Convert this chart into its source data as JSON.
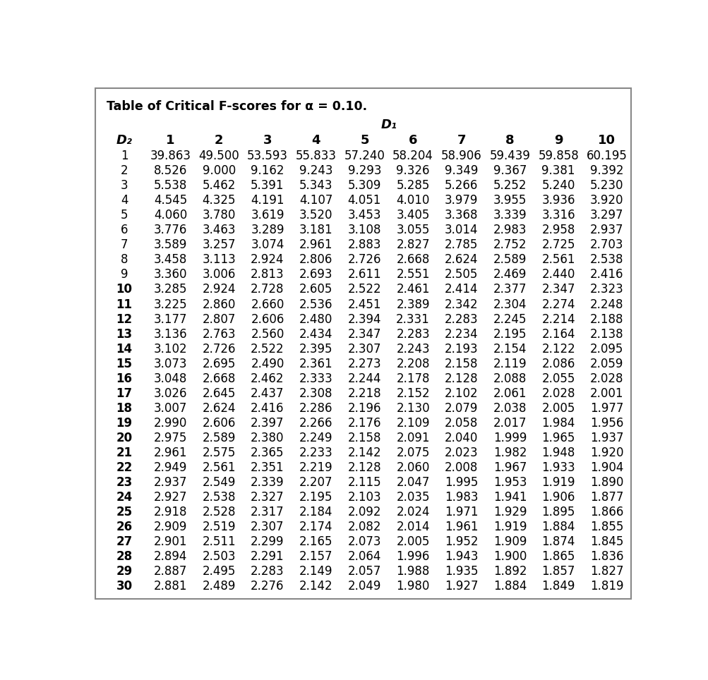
{
  "title": "Table of Critical F-scores for α = 0.10.",
  "d1_label": "D₁",
  "d2_label": "D₂",
  "col_headers": [
    "1",
    "2",
    "3",
    "4",
    "5",
    "6",
    "7",
    "8",
    "9",
    "10"
  ],
  "row_headers": [
    "1",
    "2",
    "3",
    "4",
    "5",
    "6",
    "7",
    "8",
    "9",
    "10",
    "11",
    "12",
    "13",
    "14",
    "15",
    "16",
    "17",
    "18",
    "19",
    "20",
    "21",
    "22",
    "23",
    "24",
    "25",
    "26",
    "27",
    "28",
    "29",
    "30"
  ],
  "data": [
    [
      39.863,
      49.5,
      53.593,
      55.833,
      57.24,
      58.204,
      58.906,
      59.439,
      59.858,
      60.195
    ],
    [
      8.526,
      9.0,
      9.162,
      9.243,
      9.293,
      9.326,
      9.349,
      9.367,
      9.381,
      9.392
    ],
    [
      5.538,
      5.462,
      5.391,
      5.343,
      5.309,
      5.285,
      5.266,
      5.252,
      5.24,
      5.23
    ],
    [
      4.545,
      4.325,
      4.191,
      4.107,
      4.051,
      4.01,
      3.979,
      3.955,
      3.936,
      3.92
    ],
    [
      4.06,
      3.78,
      3.619,
      3.52,
      3.453,
      3.405,
      3.368,
      3.339,
      3.316,
      3.297
    ],
    [
      3.776,
      3.463,
      3.289,
      3.181,
      3.108,
      3.055,
      3.014,
      2.983,
      2.958,
      2.937
    ],
    [
      3.589,
      3.257,
      3.074,
      2.961,
      2.883,
      2.827,
      2.785,
      2.752,
      2.725,
      2.703
    ],
    [
      3.458,
      3.113,
      2.924,
      2.806,
      2.726,
      2.668,
      2.624,
      2.589,
      2.561,
      2.538
    ],
    [
      3.36,
      3.006,
      2.813,
      2.693,
      2.611,
      2.551,
      2.505,
      2.469,
      2.44,
      2.416
    ],
    [
      3.285,
      2.924,
      2.728,
      2.605,
      2.522,
      2.461,
      2.414,
      2.377,
      2.347,
      2.323
    ],
    [
      3.225,
      2.86,
      2.66,
      2.536,
      2.451,
      2.389,
      2.342,
      2.304,
      2.274,
      2.248
    ],
    [
      3.177,
      2.807,
      2.606,
      2.48,
      2.394,
      2.331,
      2.283,
      2.245,
      2.214,
      2.188
    ],
    [
      3.136,
      2.763,
      2.56,
      2.434,
      2.347,
      2.283,
      2.234,
      2.195,
      2.164,
      2.138
    ],
    [
      3.102,
      2.726,
      2.522,
      2.395,
      2.307,
      2.243,
      2.193,
      2.154,
      2.122,
      2.095
    ],
    [
      3.073,
      2.695,
      2.49,
      2.361,
      2.273,
      2.208,
      2.158,
      2.119,
      2.086,
      2.059
    ],
    [
      3.048,
      2.668,
      2.462,
      2.333,
      2.244,
      2.178,
      2.128,
      2.088,
      2.055,
      2.028
    ],
    [
      3.026,
      2.645,
      2.437,
      2.308,
      2.218,
      2.152,
      2.102,
      2.061,
      2.028,
      2.001
    ],
    [
      3.007,
      2.624,
      2.416,
      2.286,
      2.196,
      2.13,
      2.079,
      2.038,
      2.005,
      1.977
    ],
    [
      2.99,
      2.606,
      2.397,
      2.266,
      2.176,
      2.109,
      2.058,
      2.017,
      1.984,
      1.956
    ],
    [
      2.975,
      2.589,
      2.38,
      2.249,
      2.158,
      2.091,
      2.04,
      1.999,
      1.965,
      1.937
    ],
    [
      2.961,
      2.575,
      2.365,
      2.233,
      2.142,
      2.075,
      2.023,
      1.982,
      1.948,
      1.92
    ],
    [
      2.949,
      2.561,
      2.351,
      2.219,
      2.128,
      2.06,
      2.008,
      1.967,
      1.933,
      1.904
    ],
    [
      2.937,
      2.549,
      2.339,
      2.207,
      2.115,
      2.047,
      1.995,
      1.953,
      1.919,
      1.89
    ],
    [
      2.927,
      2.538,
      2.327,
      2.195,
      2.103,
      2.035,
      1.983,
      1.941,
      1.906,
      1.877
    ],
    [
      2.918,
      2.528,
      2.317,
      2.184,
      2.092,
      2.024,
      1.971,
      1.929,
      1.895,
      1.866
    ],
    [
      2.909,
      2.519,
      2.307,
      2.174,
      2.082,
      2.014,
      1.961,
      1.919,
      1.884,
      1.855
    ],
    [
      2.901,
      2.511,
      2.299,
      2.165,
      2.073,
      2.005,
      1.952,
      1.909,
      1.874,
      1.845
    ],
    [
      2.894,
      2.503,
      2.291,
      2.157,
      2.064,
      1.996,
      1.943,
      1.9,
      1.865,
      1.836
    ],
    [
      2.887,
      2.495,
      2.283,
      2.149,
      2.057,
      1.988,
      1.935,
      1.892,
      1.857,
      1.827
    ],
    [
      2.881,
      2.489,
      2.276,
      2.142,
      2.049,
      1.98,
      1.927,
      1.884,
      1.849,
      1.819
    ]
  ],
  "bg_color": "#ffffff",
  "border_color": "#888888",
  "text_color": "#000000",
  "title_fontsize": 12.5,
  "d_label_fontsize": 13,
  "header_fontsize": 13,
  "cell_fontsize": 12
}
